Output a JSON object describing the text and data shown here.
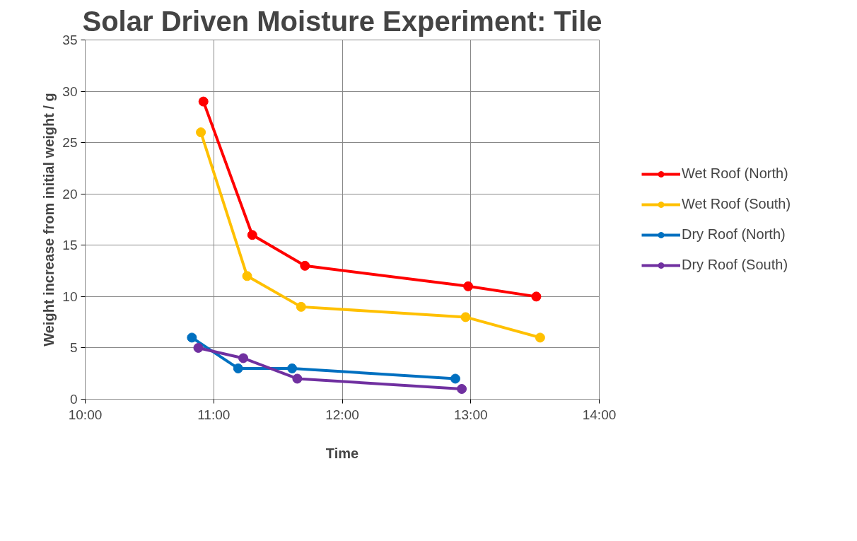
{
  "chart_data": {
    "type": "line",
    "title": "Solar Driven Moisture Experiment: Tile",
    "xlabel": "Time",
    "ylabel": "Weight increase from initial weight / g",
    "xlim": [
      10,
      14
    ],
    "xticks": [
      {
        "value": 10,
        "label": "10:00"
      },
      {
        "value": 11,
        "label": "11:00"
      },
      {
        "value": 12,
        "label": "12:00"
      },
      {
        "value": 13,
        "label": "13:00"
      },
      {
        "value": 14,
        "label": "14:00"
      }
    ],
    "ylim": [
      0,
      35
    ],
    "yticks": [
      0,
      5,
      10,
      15,
      20,
      25,
      30,
      35
    ],
    "grid": true,
    "legend": "right",
    "marker": "circle",
    "line_style": "solid",
    "series": [
      {
        "name": "Wet Roof (North)",
        "color": "#ff0000",
        "x": [
          10.92,
          11.3,
          11.71,
          12.98,
          13.51
        ],
        "values": [
          29,
          16,
          13,
          11,
          10
        ]
      },
      {
        "name": "Wet Roof (South)",
        "color": "#ffc000",
        "x": [
          10.9,
          11.26,
          11.68,
          12.96,
          13.54
        ],
        "values": [
          26,
          12,
          9,
          8,
          6
        ]
      },
      {
        "name": "Dry Roof (North)",
        "color": "#0070c0",
        "x": [
          10.83,
          11.19,
          11.61,
          12.88
        ],
        "values": [
          6,
          3,
          3,
          2
        ]
      },
      {
        "name": "Dry Roof (South)",
        "color": "#7030a0",
        "x": [
          10.88,
          11.23,
          11.65,
          12.93
        ],
        "values": [
          5,
          4,
          2,
          1
        ]
      }
    ]
  }
}
